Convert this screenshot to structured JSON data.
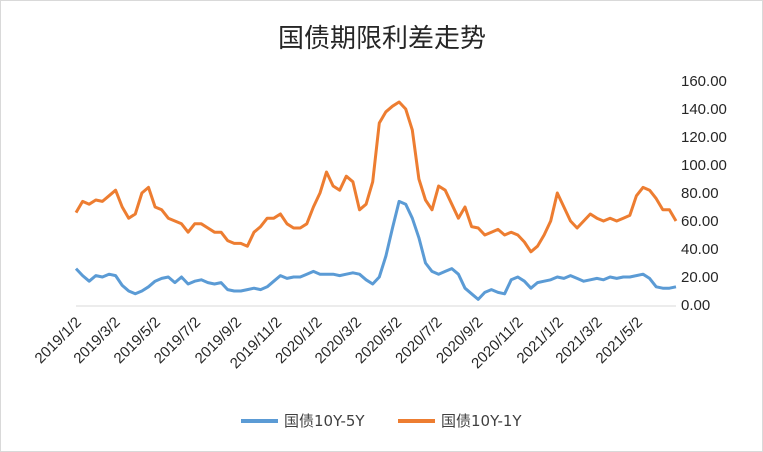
{
  "chart_data": {
    "type": "line",
    "title": "国债期限利差走势",
    "xlabel": "",
    "ylabel": "",
    "ylim": [
      0,
      160
    ],
    "y_ticks": [
      "0.00",
      "20.00",
      "40.00",
      "60.00",
      "80.00",
      "100.00",
      "120.00",
      "140.00",
      "160.00"
    ],
    "x_tick_labels": [
      "2019/1/2",
      "2019/3/2",
      "2019/5/2",
      "2019/7/2",
      "2019/9/2",
      "2019/11/2",
      "2020/1/2",
      "2020/3/2",
      "2020/5/2",
      "2020/7/2",
      "2020/9/2",
      "2020/11/2",
      "2021/1/2",
      "2021/3/2",
      "2021/5/2"
    ],
    "x_range": [
      "2019/1/2",
      "2021/6/30"
    ],
    "grid": false,
    "legend_position": "bottom",
    "series": [
      {
        "name": "国债10Y-5Y",
        "color": "#5b9bd5",
        "points": [
          [
            "2019/1/2",
            26
          ],
          [
            "2019/1/12",
            21
          ],
          [
            "2019/1/22",
            17
          ],
          [
            "2019/2/1",
            21
          ],
          [
            "2019/2/11",
            20
          ],
          [
            "2019/2/21",
            22
          ],
          [
            "2019/3/3",
            21
          ],
          [
            "2019/3/13",
            14
          ],
          [
            "2019/3/23",
            10
          ],
          [
            "2019/4/2",
            8
          ],
          [
            "2019/4/12",
            10
          ],
          [
            "2019/4/22",
            13
          ],
          [
            "2019/5/2",
            17
          ],
          [
            "2019/5/12",
            19
          ],
          [
            "2019/5/22",
            20
          ],
          [
            "2019/6/1",
            16
          ],
          [
            "2019/6/11",
            20
          ],
          [
            "2019/6/21",
            15
          ],
          [
            "2019/7/1",
            17
          ],
          [
            "2019/7/11",
            18
          ],
          [
            "2019/7/21",
            16
          ],
          [
            "2019/7/31",
            15
          ],
          [
            "2019/8/10",
            16
          ],
          [
            "2019/8/20",
            11
          ],
          [
            "2019/8/30",
            10
          ],
          [
            "2019/9/9",
            10
          ],
          [
            "2019/9/19",
            11
          ],
          [
            "2019/9/29",
            12
          ],
          [
            "2019/10/9",
            11
          ],
          [
            "2019/10/19",
            13
          ],
          [
            "2019/10/29",
            17
          ],
          [
            "2019/11/8",
            21
          ],
          [
            "2019/11/18",
            19
          ],
          [
            "2019/11/28",
            20
          ],
          [
            "2019/12/8",
            20
          ],
          [
            "2019/12/18",
            22
          ],
          [
            "2019/12/28",
            24
          ],
          [
            "2020/1/7",
            22
          ],
          [
            "2020/1/17",
            22
          ],
          [
            "2020/1/27",
            22
          ],
          [
            "2020/2/6",
            21
          ],
          [
            "2020/2/16",
            22
          ],
          [
            "2020/2/26",
            23
          ],
          [
            "2020/3/7",
            22
          ],
          [
            "2020/3/17",
            18
          ],
          [
            "2020/3/27",
            15
          ],
          [
            "2020/4/6",
            20
          ],
          [
            "2020/4/16",
            35
          ],
          [
            "2020/4/26",
            55
          ],
          [
            "2020/5/6",
            74
          ],
          [
            "2020/5/16",
            72
          ],
          [
            "2020/5/26",
            62
          ],
          [
            "2020/6/5",
            48
          ],
          [
            "2020/6/15",
            30
          ],
          [
            "2020/6/25",
            24
          ],
          [
            "2020/7/5",
            22
          ],
          [
            "2020/7/15",
            24
          ],
          [
            "2020/7/25",
            26
          ],
          [
            "2020/8/4",
            22
          ],
          [
            "2020/8/14",
            12
          ],
          [
            "2020/8/24",
            8
          ],
          [
            "2020/9/3",
            4
          ],
          [
            "2020/9/13",
            9
          ],
          [
            "2020/9/23",
            11
          ],
          [
            "2020/10/3",
            9
          ],
          [
            "2020/10/13",
            8
          ],
          [
            "2020/10/23",
            18
          ],
          [
            "2020/11/2",
            20
          ],
          [
            "2020/11/12",
            17
          ],
          [
            "2020/11/22",
            12
          ],
          [
            "2020/12/2",
            16
          ],
          [
            "2020/12/12",
            17
          ],
          [
            "2020/12/22",
            18
          ],
          [
            "2021/1/1",
            20
          ],
          [
            "2021/1/11",
            19
          ],
          [
            "2021/1/21",
            21
          ],
          [
            "2021/1/31",
            19
          ],
          [
            "2021/2/10",
            17
          ],
          [
            "2021/2/20",
            18
          ],
          [
            "2021/3/2",
            19
          ],
          [
            "2021/3/12",
            18
          ],
          [
            "2021/3/22",
            20
          ],
          [
            "2021/4/1",
            19
          ],
          [
            "2021/4/11",
            20
          ],
          [
            "2021/4/21",
            20
          ],
          [
            "2021/5/1",
            21
          ],
          [
            "2021/5/11",
            22
          ],
          [
            "2021/5/21",
            19
          ],
          [
            "2021/5/31",
            13
          ],
          [
            "2021/6/10",
            12
          ],
          [
            "2021/6/20",
            12
          ],
          [
            "2021/6/30",
            13
          ]
        ]
      },
      {
        "name": "国债10Y-1Y",
        "color": "#ed7d31",
        "points": [
          [
            "2019/1/2",
            66
          ],
          [
            "2019/1/12",
            74
          ],
          [
            "2019/1/22",
            72
          ],
          [
            "2019/2/1",
            75
          ],
          [
            "2019/2/11",
            74
          ],
          [
            "2019/2/21",
            78
          ],
          [
            "2019/3/3",
            82
          ],
          [
            "2019/3/13",
            70
          ],
          [
            "2019/3/23",
            62
          ],
          [
            "2019/4/2",
            65
          ],
          [
            "2019/4/12",
            80
          ],
          [
            "2019/4/22",
            84
          ],
          [
            "2019/5/2",
            70
          ],
          [
            "2019/5/12",
            68
          ],
          [
            "2019/5/22",
            62
          ],
          [
            "2019/6/1",
            60
          ],
          [
            "2019/6/11",
            58
          ],
          [
            "2019/6/21",
            52
          ],
          [
            "2019/7/1",
            58
          ],
          [
            "2019/7/11",
            58
          ],
          [
            "2019/7/21",
            55
          ],
          [
            "2019/7/31",
            52
          ],
          [
            "2019/8/10",
            52
          ],
          [
            "2019/8/20",
            46
          ],
          [
            "2019/8/30",
            44
          ],
          [
            "2019/9/9",
            44
          ],
          [
            "2019/9/19",
            42
          ],
          [
            "2019/9/29",
            52
          ],
          [
            "2019/10/9",
            56
          ],
          [
            "2019/10/19",
            62
          ],
          [
            "2019/10/29",
            62
          ],
          [
            "2019/11/8",
            65
          ],
          [
            "2019/11/18",
            58
          ],
          [
            "2019/11/28",
            55
          ],
          [
            "2019/12/8",
            55
          ],
          [
            "2019/12/18",
            58
          ],
          [
            "2019/12/28",
            70
          ],
          [
            "2020/1/7",
            80
          ],
          [
            "2020/1/17",
            95
          ],
          [
            "2020/1/27",
            85
          ],
          [
            "2020/2/6",
            82
          ],
          [
            "2020/2/16",
            92
          ],
          [
            "2020/2/26",
            88
          ],
          [
            "2020/3/7",
            68
          ],
          [
            "2020/3/17",
            72
          ],
          [
            "2020/3/27",
            88
          ],
          [
            "2020/4/6",
            130
          ],
          [
            "2020/4/16",
            138
          ],
          [
            "2020/4/26",
            142
          ],
          [
            "2020/5/6",
            145
          ],
          [
            "2020/5/16",
            140
          ],
          [
            "2020/5/26",
            125
          ],
          [
            "2020/6/5",
            90
          ],
          [
            "2020/6/15",
            75
          ],
          [
            "2020/6/25",
            68
          ],
          [
            "2020/7/5",
            85
          ],
          [
            "2020/7/15",
            82
          ],
          [
            "2020/7/25",
            72
          ],
          [
            "2020/8/4",
            62
          ],
          [
            "2020/8/14",
            70
          ],
          [
            "2020/8/24",
            56
          ],
          [
            "2020/9/3",
            55
          ],
          [
            "2020/9/13",
            50
          ],
          [
            "2020/9/23",
            52
          ],
          [
            "2020/10/3",
            54
          ],
          [
            "2020/10/13",
            50
          ],
          [
            "2020/10/23",
            52
          ],
          [
            "2020/11/2",
            50
          ],
          [
            "2020/11/12",
            45
          ],
          [
            "2020/11/22",
            38
          ],
          [
            "2020/12/2",
            42
          ],
          [
            "2020/12/12",
            50
          ],
          [
            "2020/12/22",
            60
          ],
          [
            "2021/1/1",
            80
          ],
          [
            "2021/1/11",
            70
          ],
          [
            "2021/1/21",
            60
          ],
          [
            "2021/1/31",
            55
          ],
          [
            "2021/2/10",
            60
          ],
          [
            "2021/2/20",
            65
          ],
          [
            "2021/3/2",
            62
          ],
          [
            "2021/3/12",
            60
          ],
          [
            "2021/3/22",
            62
          ],
          [
            "2021/4/1",
            60
          ],
          [
            "2021/4/11",
            62
          ],
          [
            "2021/4/21",
            64
          ],
          [
            "2021/5/1",
            78
          ],
          [
            "2021/5/11",
            84
          ],
          [
            "2021/5/21",
            82
          ],
          [
            "2021/5/31",
            76
          ],
          [
            "2021/6/10",
            68
          ],
          [
            "2021/6/20",
            68
          ],
          [
            "2021/6/30",
            60
          ]
        ]
      }
    ]
  }
}
